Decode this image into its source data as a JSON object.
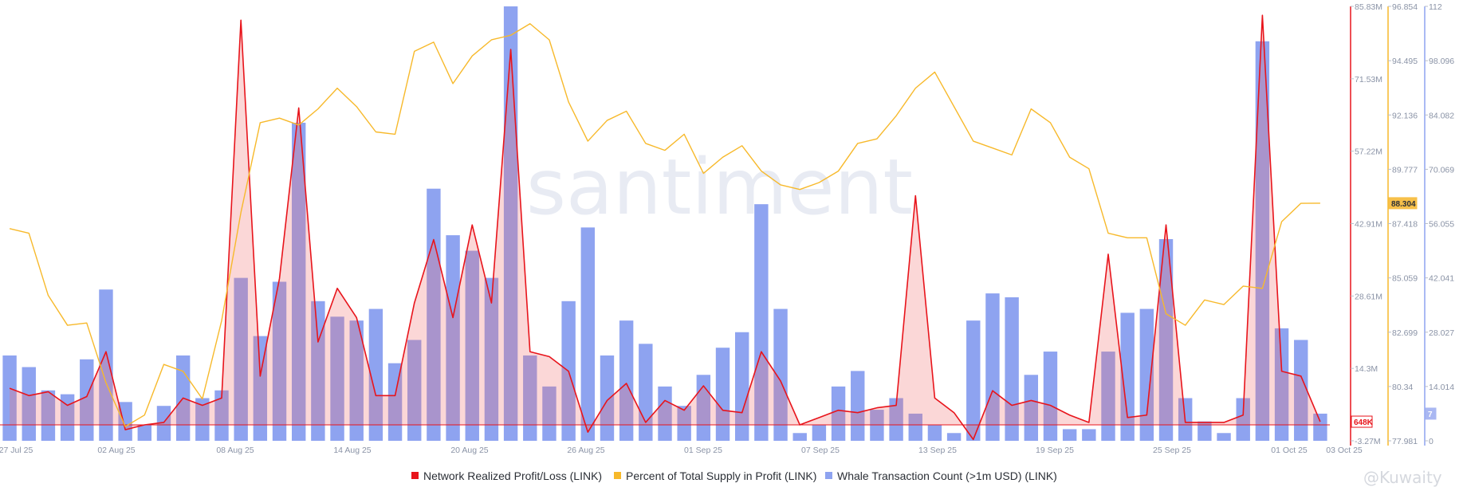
{
  "watermark": "santiment",
  "footer": "@Kuwaity",
  "chart_data": {
    "type": "bar",
    "x_labels": [
      "27 Jul 25",
      "02 Aug 25",
      "08 Aug 25",
      "14 Aug 25",
      "20 Aug 25",
      "26 Aug 25",
      "01 Sep 25",
      "07 Sep 25",
      "13 Sep 25",
      "19 Sep 25",
      "25 Sep 25",
      "01 Oct 25",
      "03 Oct 25"
    ],
    "series": [
      {
        "name": "Network Realized Profit/Loss (LINK)",
        "kind": "area-line",
        "color": "#e8141b",
        "axis": "left",
        "last_value_label": "648K",
        "values": [
          7.5,
          6.0,
          6.8,
          4.0,
          5.8,
          15.0,
          -1.0,
          0.0,
          0.5,
          5.5,
          4.0,
          5.5,
          83.0,
          10.0,
          30.0,
          65.0,
          17.0,
          28.0,
          22.0,
          6.0,
          6.0,
          25.0,
          38.0,
          22.0,
          41.0,
          25.0,
          77.0,
          15.0,
          14.0,
          11.0,
          -1.5,
          5.0,
          8.5,
          0.5,
          5.0,
          3.0,
          8.0,
          3.0,
          2.5,
          15.0,
          9.0,
          0.0,
          1.5,
          3.0,
          2.5,
          3.5,
          4.0,
          47.0,
          5.5,
          2.5,
          -3.0,
          7.0,
          4.0,
          5.0,
          4.0,
          2.0,
          0.5,
          35.0,
          1.5,
          2.0,
          41.0,
          0.5,
          0.5,
          0.5,
          2.0,
          84.0,
          11.0,
          10.0,
          0.648
        ]
      },
      {
        "name": "Percent of Total Supply in Profit (LINK)",
        "kind": "line",
        "color": "#f7b92b",
        "axis": "right1",
        "last_value_label": "88.304",
        "values": [
          87.2,
          87.0,
          84.3,
          83.0,
          83.1,
          80.5,
          78.6,
          79.1,
          81.3,
          81.0,
          79.8,
          83.2,
          87.9,
          91.8,
          92.0,
          91.7,
          92.4,
          93.3,
          92.5,
          91.4,
          91.3,
          94.9,
          95.3,
          93.5,
          94.7,
          95.4,
          95.6,
          96.1,
          95.4,
          92.7,
          91.0,
          91.9,
          92.3,
          90.9,
          90.6,
          91.3,
          89.6,
          90.3,
          90.8,
          89.7,
          89.1,
          88.9,
          89.2,
          89.7,
          90.9,
          91.1,
          92.1,
          93.3,
          94.0,
          92.5,
          91.0,
          90.7,
          90.4,
          92.4,
          91.8,
          90.3,
          89.8,
          87.0,
          86.8,
          86.8,
          83.5,
          83.0,
          84.1,
          83.9,
          84.7,
          84.6,
          87.5,
          88.3,
          88.304
        ]
      },
      {
        "name": "Whale Transaction Count (>1m USD) (LINK)",
        "kind": "bar",
        "color": "#8ea3f0",
        "axis": "right2",
        "last_value_label": "7",
        "values": [
          22,
          19,
          13,
          12,
          21,
          39,
          10,
          4,
          9,
          22,
          11,
          13,
          42,
          27,
          41,
          82,
          36,
          32,
          31,
          34,
          20,
          26,
          65,
          53,
          49,
          42,
          112,
          22,
          14,
          36,
          55,
          22,
          31,
          25,
          14,
          9,
          17,
          24,
          28,
          61,
          34,
          2,
          4,
          14,
          18,
          8,
          11,
          7,
          4,
          2,
          31,
          38,
          37,
          17,
          23,
          3,
          3,
          23,
          33,
          34,
          52,
          11,
          5,
          2,
          11,
          103,
          29,
          26,
          7
        ]
      }
    ],
    "axes": {
      "left": {
        "ticks": [
          "85.83M",
          "71.53M",
          "57.22M",
          "42.91M",
          "28.61M",
          "14.3M",
          "-3.27M"
        ],
        "min": -3.27,
        "max": 85.83
      },
      "right1": {
        "ticks": [
          "96.854",
          "94.495",
          "92.136",
          "89.777",
          "87.418",
          "85.059",
          "82.699",
          "80.34",
          "77.981"
        ],
        "min": 77.981,
        "max": 96.854
      },
      "right2": {
        "ticks": [
          "112",
          "98.096",
          "84.082",
          "70.069",
          "56.055",
          "42.041",
          "28.027",
          "14.014",
          "0"
        ],
        "min": 0,
        "max": 112
      }
    },
    "legend_position": "bottom-center",
    "grid": false
  }
}
